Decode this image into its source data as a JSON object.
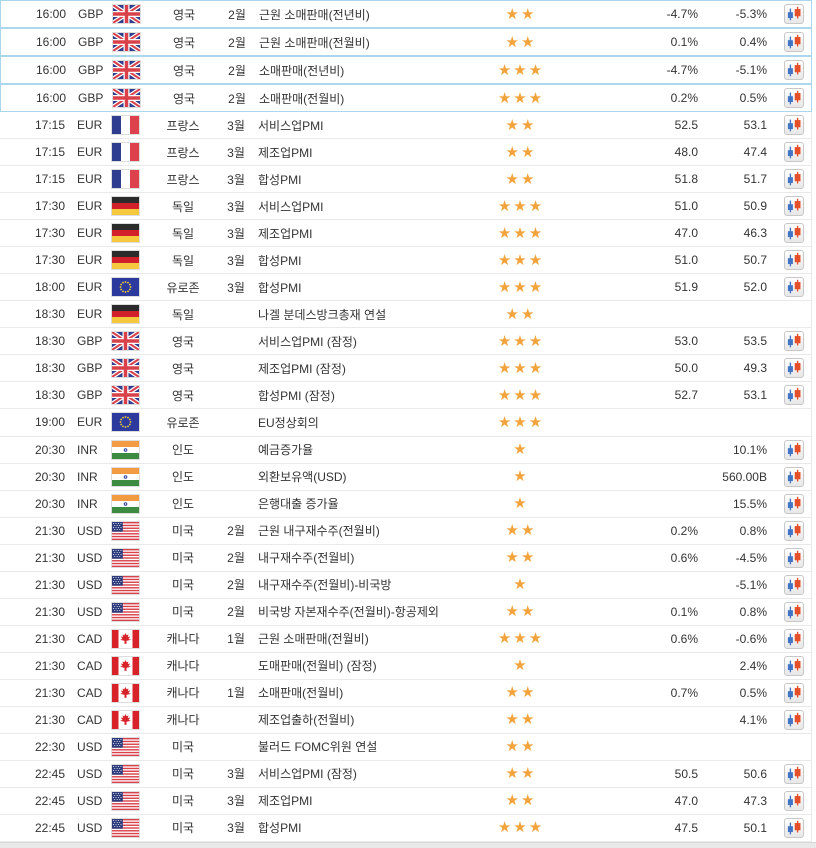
{
  "colors": {
    "star": "#f2a33c",
    "highlight_border": "#abd7ec",
    "row_separator": "#e9e9e9",
    "candle_blue": "#4274c4",
    "candle_red": "#e4502a",
    "text": "#333333"
  },
  "icons": {
    "chart": "candlestick-chart-icon",
    "importance": "star-icon",
    "flags_used": [
      "gb-flag-icon",
      "fr-flag-icon",
      "de-flag-icon",
      "eu-flag-icon",
      "in-flag-icon",
      "us-flag-icon",
      "ca-flag-icon"
    ]
  },
  "table": {
    "rows": [
      {
        "time": "16:00",
        "currency": "GBP",
        "flag": "gb",
        "country": "영국",
        "month": "2월",
        "event": "근원 소매판매(전년비)",
        "stars": 2,
        "actual": "-4.7%",
        "forecast": "-5.3%",
        "chart": true,
        "highlight": true
      },
      {
        "time": "16:00",
        "currency": "GBP",
        "flag": "gb",
        "country": "영국",
        "month": "2월",
        "event": "근원 소매판매(전월비)",
        "stars": 2,
        "actual": "0.1%",
        "forecast": "0.4%",
        "chart": true,
        "highlight": true
      },
      {
        "time": "16:00",
        "currency": "GBP",
        "flag": "gb",
        "country": "영국",
        "month": "2월",
        "event": "소매판매(전년비)",
        "stars": 3,
        "actual": "-4.7%",
        "forecast": "-5.1%",
        "chart": true,
        "highlight": true
      },
      {
        "time": "16:00",
        "currency": "GBP",
        "flag": "gb",
        "country": "영국",
        "month": "2월",
        "event": "소매판매(전월비)",
        "stars": 3,
        "actual": "0.2%",
        "forecast": "0.5%",
        "chart": true,
        "highlight": true
      },
      {
        "time": "17:15",
        "currency": "EUR",
        "flag": "fr",
        "country": "프랑스",
        "month": "3월",
        "event": "서비스업PMI",
        "stars": 2,
        "actual": "52.5",
        "forecast": "53.1",
        "chart": true,
        "highlight": false
      },
      {
        "time": "17:15",
        "currency": "EUR",
        "flag": "fr",
        "country": "프랑스",
        "month": "3월",
        "event": "제조업PMI",
        "stars": 2,
        "actual": "48.0",
        "forecast": "47.4",
        "chart": true,
        "highlight": false
      },
      {
        "time": "17:15",
        "currency": "EUR",
        "flag": "fr",
        "country": "프랑스",
        "month": "3월",
        "event": "합성PMI",
        "stars": 2,
        "actual": "51.8",
        "forecast": "51.7",
        "chart": true,
        "highlight": false
      },
      {
        "time": "17:30",
        "currency": "EUR",
        "flag": "de",
        "country": "독일",
        "month": "3월",
        "event": "서비스업PMI",
        "stars": 3,
        "actual": "51.0",
        "forecast": "50.9",
        "chart": true,
        "highlight": false
      },
      {
        "time": "17:30",
        "currency": "EUR",
        "flag": "de",
        "country": "독일",
        "month": "3월",
        "event": "제조업PMI",
        "stars": 3,
        "actual": "47.0",
        "forecast": "46.3",
        "chart": true,
        "highlight": false
      },
      {
        "time": "17:30",
        "currency": "EUR",
        "flag": "de",
        "country": "독일",
        "month": "3월",
        "event": "합성PMI",
        "stars": 3,
        "actual": "51.0",
        "forecast": "50.7",
        "chart": true,
        "highlight": false
      },
      {
        "time": "18:00",
        "currency": "EUR",
        "flag": "eu",
        "country": "유로존",
        "month": "3월",
        "event": "합성PMI",
        "stars": 3,
        "actual": "51.9",
        "forecast": "52.0",
        "chart": true,
        "highlight": false
      },
      {
        "time": "18:30",
        "currency": "EUR",
        "flag": "de",
        "country": "독일",
        "month": "",
        "event": "나겔 분데스방크총재 연설",
        "stars": 2,
        "actual": "",
        "forecast": "",
        "chart": false,
        "highlight": false
      },
      {
        "time": "18:30",
        "currency": "GBP",
        "flag": "gb",
        "country": "영국",
        "month": "",
        "event": "서비스업PMI (잠정)",
        "stars": 3,
        "actual": "53.0",
        "forecast": "53.5",
        "chart": true,
        "highlight": false
      },
      {
        "time": "18:30",
        "currency": "GBP",
        "flag": "gb",
        "country": "영국",
        "month": "",
        "event": "제조업PMI (잠정)",
        "stars": 3,
        "actual": "50.0",
        "forecast": "49.3",
        "chart": true,
        "highlight": false
      },
      {
        "time": "18:30",
        "currency": "GBP",
        "flag": "gb",
        "country": "영국",
        "month": "",
        "event": "합성PMI (잠정)",
        "stars": 3,
        "actual": "52.7",
        "forecast": "53.1",
        "chart": true,
        "highlight": false
      },
      {
        "time": "19:00",
        "currency": "EUR",
        "flag": "eu",
        "country": "유로존",
        "month": "",
        "event": "EU정상회의",
        "stars": 3,
        "actual": "",
        "forecast": "",
        "chart": false,
        "highlight": false
      },
      {
        "time": "20:30",
        "currency": "INR",
        "flag": "in",
        "country": "인도",
        "month": "",
        "event": "예금증가율",
        "stars": 1,
        "actual": "",
        "forecast": "10.1%",
        "chart": true,
        "highlight": false
      },
      {
        "time": "20:30",
        "currency": "INR",
        "flag": "in",
        "country": "인도",
        "month": "",
        "event": "외환보유액(USD)",
        "stars": 1,
        "actual": "",
        "forecast": "560.00B",
        "chart": true,
        "highlight": false
      },
      {
        "time": "20:30",
        "currency": "INR",
        "flag": "in",
        "country": "인도",
        "month": "",
        "event": "은행대출 증가율",
        "stars": 1,
        "actual": "",
        "forecast": "15.5%",
        "chart": true,
        "highlight": false
      },
      {
        "time": "21:30",
        "currency": "USD",
        "flag": "us",
        "country": "미국",
        "month": "2월",
        "event": "근원 내구재수주(전월비)",
        "stars": 2,
        "actual": "0.2%",
        "forecast": "0.8%",
        "chart": true,
        "highlight": false
      },
      {
        "time": "21:30",
        "currency": "USD",
        "flag": "us",
        "country": "미국",
        "month": "2월",
        "event": "내구재수주(전월비)",
        "stars": 2,
        "actual": "0.6%",
        "forecast": "-4.5%",
        "chart": true,
        "highlight": false
      },
      {
        "time": "21:30",
        "currency": "USD",
        "flag": "us",
        "country": "미국",
        "month": "2월",
        "event": "내구재수주(전월비)-비국방",
        "stars": 1,
        "actual": "",
        "forecast": "-5.1%",
        "chart": true,
        "highlight": false
      },
      {
        "time": "21:30",
        "currency": "USD",
        "flag": "us",
        "country": "미국",
        "month": "2월",
        "event": "비국방 자본재수주(전월비)-항공제외",
        "stars": 2,
        "actual": "0.1%",
        "forecast": "0.8%",
        "chart": true,
        "highlight": false
      },
      {
        "time": "21:30",
        "currency": "CAD",
        "flag": "ca",
        "country": "캐나다",
        "month": "1월",
        "event": "근원 소매판매(전월비)",
        "stars": 3,
        "actual": "0.6%",
        "forecast": "-0.6%",
        "chart": true,
        "highlight": false
      },
      {
        "time": "21:30",
        "currency": "CAD",
        "flag": "ca",
        "country": "캐나다",
        "month": "",
        "event": "도매판매(전월비) (잠정)",
        "stars": 1,
        "actual": "",
        "forecast": "2.4%",
        "chart": true,
        "highlight": false
      },
      {
        "time": "21:30",
        "currency": "CAD",
        "flag": "ca",
        "country": "캐나다",
        "month": "1월",
        "event": "소매판매(전월비)",
        "stars": 2,
        "actual": "0.7%",
        "forecast": "0.5%",
        "chart": true,
        "highlight": false
      },
      {
        "time": "21:30",
        "currency": "CAD",
        "flag": "ca",
        "country": "캐나다",
        "month": "",
        "event": "제조업출하(전월비)",
        "stars": 2,
        "actual": "",
        "forecast": "4.1%",
        "chart": true,
        "highlight": false
      },
      {
        "time": "22:30",
        "currency": "USD",
        "flag": "us",
        "country": "미국",
        "month": "",
        "event": "불러드 FOMC위원 연설",
        "stars": 2,
        "actual": "",
        "forecast": "",
        "chart": false,
        "highlight": false
      },
      {
        "time": "22:45",
        "currency": "USD",
        "flag": "us",
        "country": "미국",
        "month": "3월",
        "event": "서비스업PMI (잠정)",
        "stars": 2,
        "actual": "50.5",
        "forecast": "50.6",
        "chart": true,
        "highlight": false
      },
      {
        "time": "22:45",
        "currency": "USD",
        "flag": "us",
        "country": "미국",
        "month": "3월",
        "event": "제조업PMI",
        "stars": 2,
        "actual": "47.0",
        "forecast": "47.3",
        "chart": true,
        "highlight": false
      },
      {
        "time": "22:45",
        "currency": "USD",
        "flag": "us",
        "country": "미국",
        "month": "3월",
        "event": "합성PMI",
        "stars": 3,
        "actual": "47.5",
        "forecast": "50.1",
        "chart": true,
        "highlight": false
      }
    ]
  }
}
